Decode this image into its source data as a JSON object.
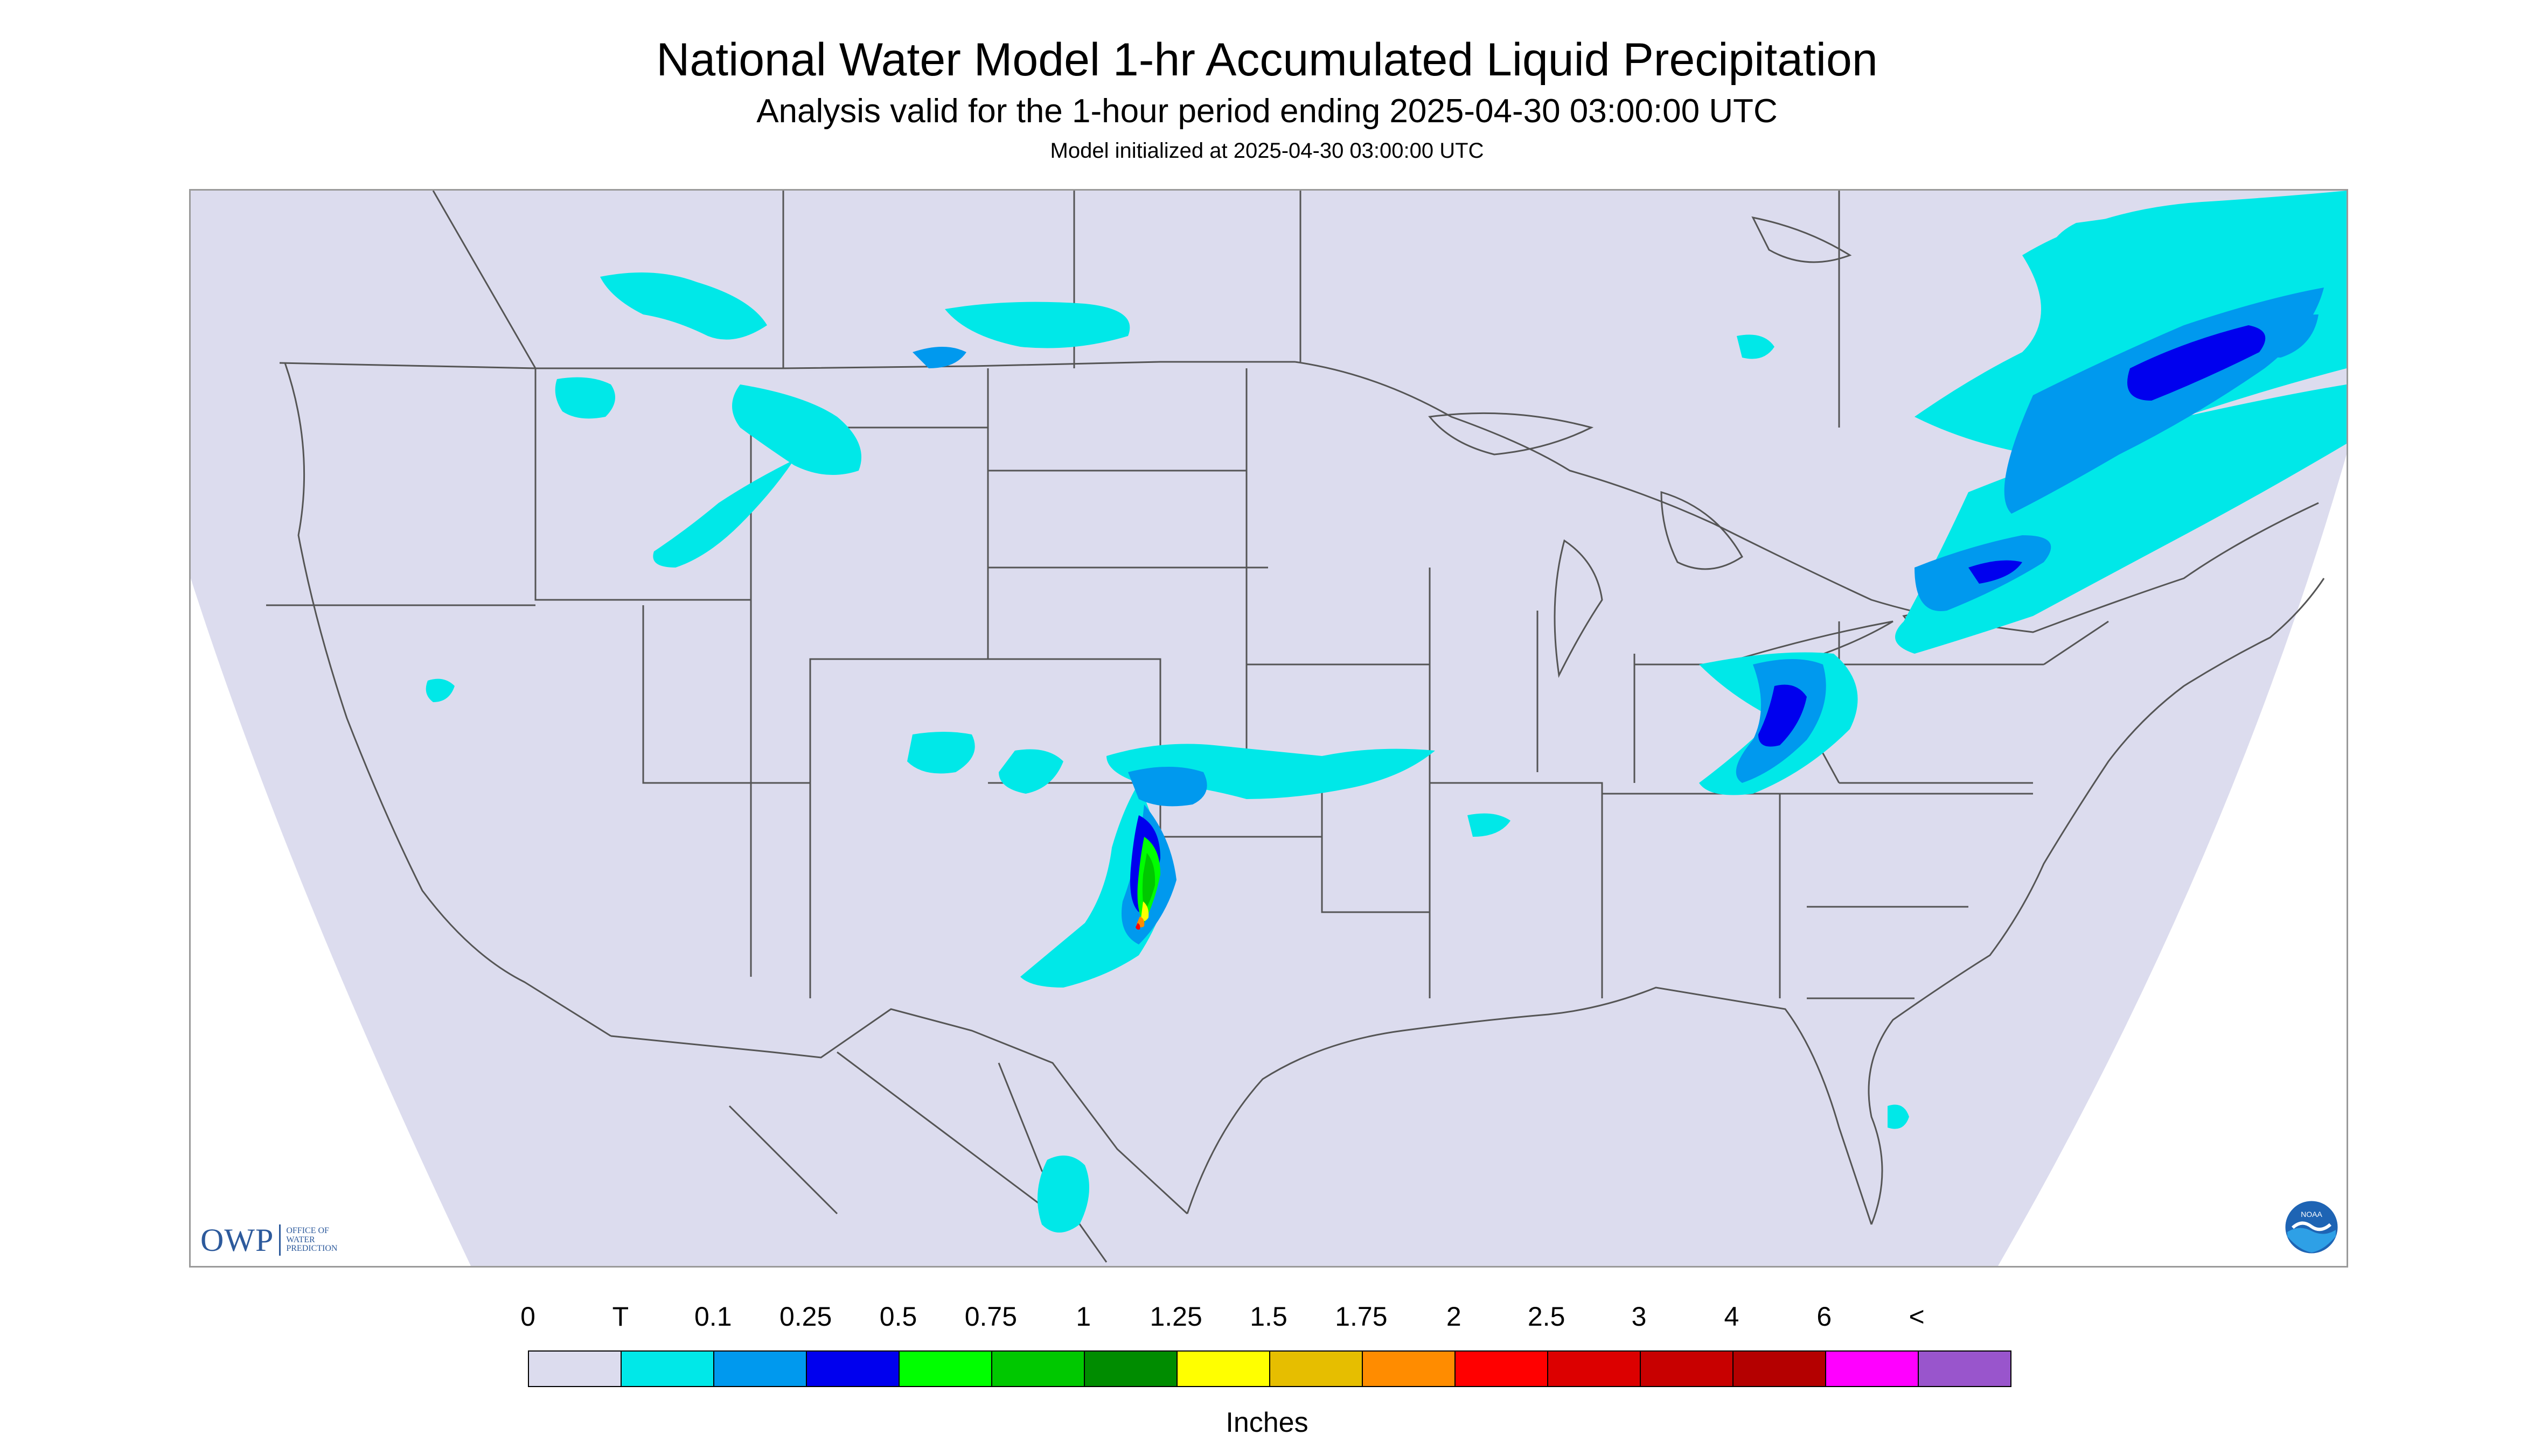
{
  "header": {
    "title": "National Water Model 1-hr Accumulated Liquid Precipitation",
    "subtitle": "Analysis valid for the 1-hour period ending 2025-04-30 03:00:00 UTC",
    "init": "Model initialized at 2025-04-30 03:00:00 UTC"
  },
  "logos": {
    "owp": {
      "mark": "OWP",
      "line1": "OFFICE OF",
      "line2": "WATER",
      "line3": "PREDICTION"
    },
    "noaa": {
      "text": "NOAA"
    }
  },
  "legend": {
    "units": "Inches",
    "labels": [
      "0",
      "T",
      "0.1",
      "0.25",
      "0.5",
      "0.75",
      "1",
      "1.25",
      "1.5",
      "1.75",
      "2",
      "2.5",
      "3",
      "4",
      "6",
      "<"
    ],
    "colors": [
      "#dcdcee",
      "#00e8e8",
      "#0099ee",
      "#0000ee",
      "#00ff00",
      "#00c800",
      "#008c00",
      "#ffff00",
      "#e6be00",
      "#ff8c00",
      "#ff0000",
      "#dc0000",
      "#c80000",
      "#b40000",
      "#ff00ff",
      "#9955cc"
    ]
  },
  "map": {
    "background_color": "#dcdcee",
    "outside_color": "#ffffff",
    "border_color": "#555555"
  }
}
